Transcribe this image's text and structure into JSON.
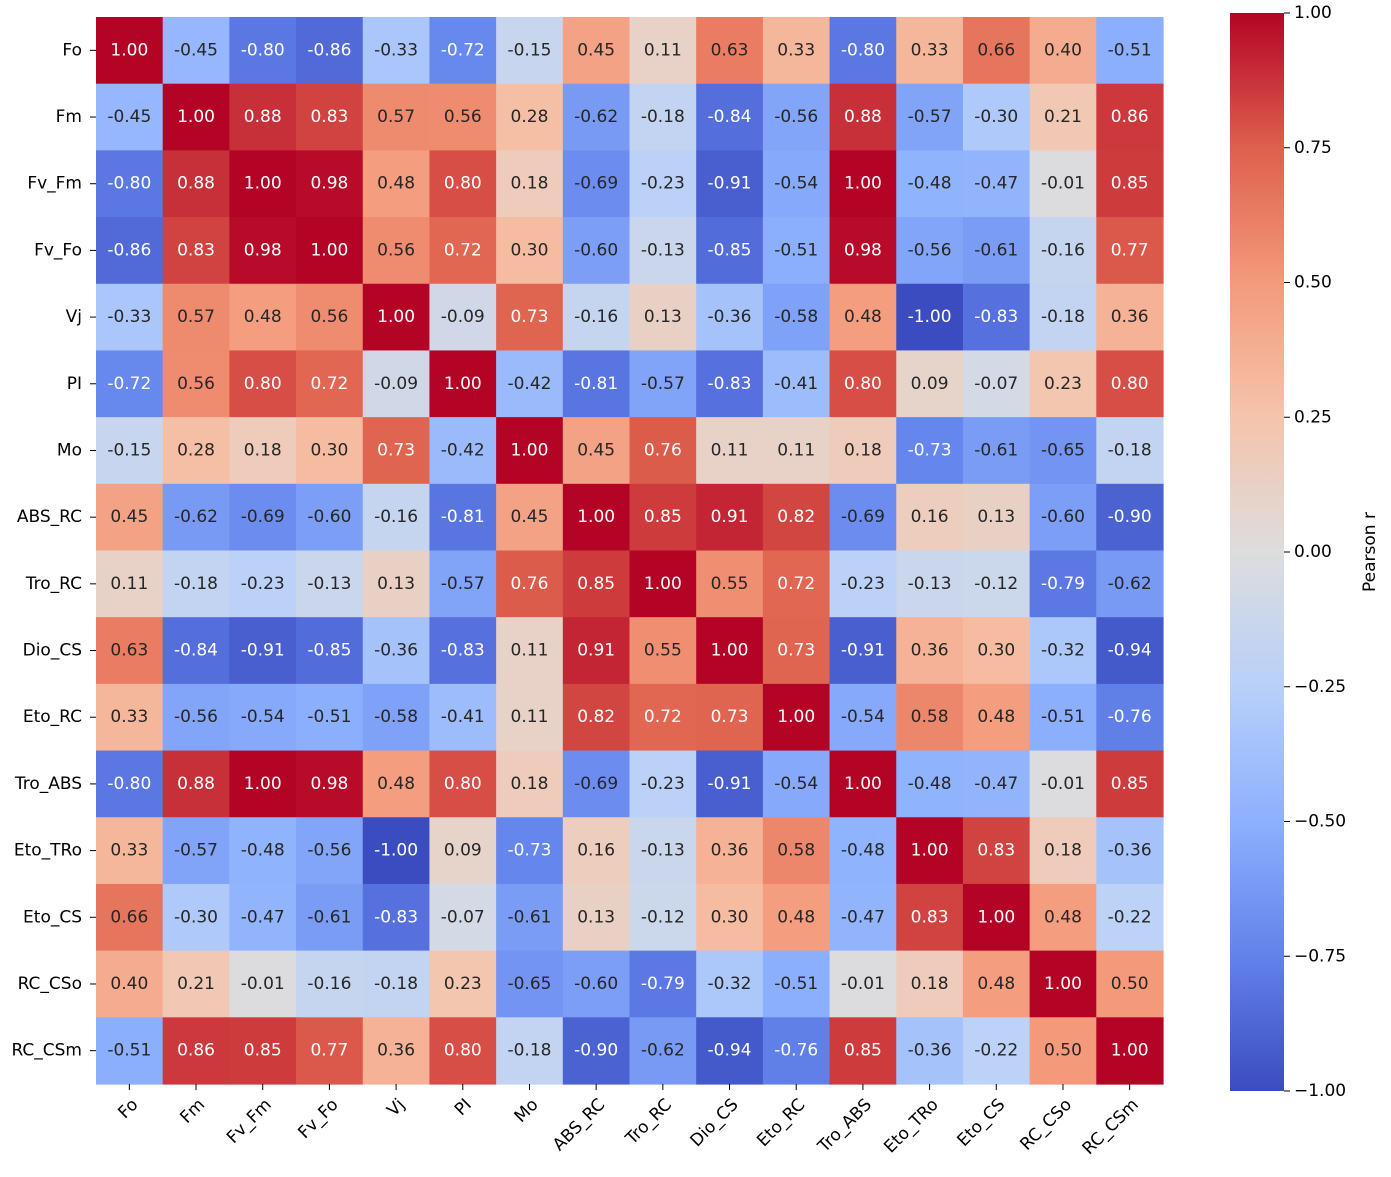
{
  "chart_data": {
    "type": "heatmap",
    "title": "",
    "xlabel": "",
    "ylabel": "",
    "variables": [
      "Fo",
      "Fm",
      "Fv_Fm",
      "Fv_Fo",
      "Vj",
      "PI",
      "Mo",
      "ABS_RC",
      "Tro_RC",
      "Dio_CS",
      "Eto_RC",
      "Tro_ABS",
      "Eto_TRo",
      "Eto_CS",
      "RC_CSo",
      "RC_CSm"
    ],
    "values": [
      [
        1.0,
        -0.45,
        -0.8,
        -0.86,
        -0.33,
        -0.72,
        -0.15,
        0.45,
        0.11,
        0.63,
        0.33,
        -0.8,
        0.33,
        0.66,
        0.4,
        -0.51
      ],
      [
        -0.45,
        1.0,
        0.88,
        0.83,
        0.57,
        0.56,
        0.28,
        -0.62,
        -0.18,
        -0.84,
        -0.56,
        0.88,
        -0.57,
        -0.3,
        0.21,
        0.86
      ],
      [
        -0.8,
        0.88,
        1.0,
        0.98,
        0.48,
        0.8,
        0.18,
        -0.69,
        -0.23,
        -0.91,
        -0.54,
        1.0,
        -0.48,
        -0.47,
        -0.01,
        0.85
      ],
      [
        -0.86,
        0.83,
        0.98,
        1.0,
        0.56,
        0.72,
        0.3,
        -0.6,
        -0.13,
        -0.85,
        -0.51,
        0.98,
        -0.56,
        -0.61,
        -0.16,
        0.77
      ],
      [
        -0.33,
        0.57,
        0.48,
        0.56,
        1.0,
        -0.09,
        0.73,
        -0.16,
        0.13,
        -0.36,
        -0.58,
        0.48,
        -1.0,
        -0.83,
        -0.18,
        0.36
      ],
      [
        -0.72,
        0.56,
        0.8,
        0.72,
        -0.09,
        1.0,
        -0.42,
        -0.81,
        -0.57,
        -0.83,
        -0.41,
        0.8,
        0.09,
        -0.07,
        0.23,
        0.8
      ],
      [
        -0.15,
        0.28,
        0.18,
        0.3,
        0.73,
        -0.42,
        1.0,
        0.45,
        0.76,
        0.11,
        0.11,
        0.18,
        -0.73,
        -0.61,
        -0.65,
        -0.18
      ],
      [
        0.45,
        -0.62,
        -0.69,
        -0.6,
        -0.16,
        -0.81,
        0.45,
        1.0,
        0.85,
        0.91,
        0.82,
        -0.69,
        0.16,
        0.13,
        -0.6,
        -0.9
      ],
      [
        0.11,
        -0.18,
        -0.23,
        -0.13,
        0.13,
        -0.57,
        0.76,
        0.85,
        1.0,
        0.55,
        0.72,
        -0.23,
        -0.13,
        -0.12,
        -0.79,
        -0.62
      ],
      [
        0.63,
        -0.84,
        -0.91,
        -0.85,
        -0.36,
        -0.83,
        0.11,
        0.91,
        0.55,
        1.0,
        0.73,
        -0.91,
        0.36,
        0.3,
        -0.32,
        -0.94
      ],
      [
        0.33,
        -0.56,
        -0.54,
        -0.51,
        -0.58,
        -0.41,
        0.11,
        0.82,
        0.72,
        0.73,
        1.0,
        -0.54,
        0.58,
        0.48,
        -0.51,
        -0.76
      ],
      [
        -0.8,
        0.88,
        1.0,
        0.98,
        0.48,
        0.8,
        0.18,
        -0.69,
        -0.23,
        -0.91,
        -0.54,
        1.0,
        -0.48,
        -0.47,
        -0.01,
        0.85
      ],
      [
        0.33,
        -0.57,
        -0.48,
        -0.56,
        -1.0,
        0.09,
        -0.73,
        0.16,
        -0.13,
        0.36,
        0.58,
        -0.48,
        1.0,
        0.83,
        0.18,
        -0.36
      ],
      [
        0.66,
        -0.3,
        -0.47,
        -0.61,
        -0.83,
        -0.07,
        -0.61,
        0.13,
        -0.12,
        0.3,
        0.48,
        -0.47,
        0.83,
        1.0,
        0.48,
        -0.22
      ],
      [
        0.4,
        0.21,
        -0.01,
        -0.16,
        -0.18,
        0.23,
        -0.65,
        -0.6,
        -0.79,
        -0.32,
        -0.51,
        -0.01,
        0.18,
        0.48,
        1.0,
        0.5
      ],
      [
        -0.51,
        0.86,
        0.85,
        0.77,
        0.36,
        0.8,
        -0.18,
        -0.9,
        -0.62,
        -0.94,
        -0.76,
        0.85,
        -0.36,
        -0.22,
        0.5,
        1.0
      ]
    ],
    "colorbar": {
      "label": "Pearson r",
      "range": [
        -1.0,
        1.0
      ],
      "ticks": [
        "1.00",
        "0.75",
        "0.50",
        "0.25",
        "0.00",
        "−0.25",
        "−0.50",
        "−0.75",
        "−1.00"
      ],
      "tick_values": [
        1.0,
        0.75,
        0.5,
        0.25,
        0.0,
        -0.25,
        -0.5,
        -0.75,
        -1.0
      ]
    },
    "colormap": "coolwarm",
    "colormap_stops": [
      "#3b4cc0",
      "#6282ea",
      "#8db0fe",
      "#b8d0f9",
      "#dddddd",
      "#f5c4ac",
      "#f49a7b",
      "#de604d",
      "#b40426"
    ],
    "annotation_format": "0.00",
    "grid": false
  }
}
